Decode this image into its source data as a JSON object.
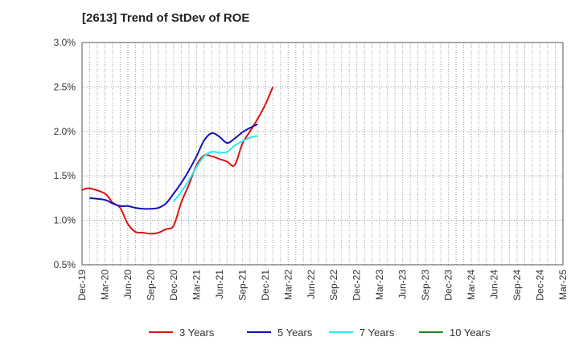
{
  "chart_data": {
    "type": "line",
    "title": "[2613]  Trend of StDev of ROE",
    "xlabel": "",
    "ylabel": "",
    "x_ticks": [
      "Dec-19",
      "Mar-20",
      "Jun-20",
      "Sep-20",
      "Dec-20",
      "Mar-21",
      "Jun-21",
      "Sep-21",
      "Dec-21",
      "Mar-22",
      "Jun-22",
      "Sep-22",
      "Dec-22",
      "Mar-23",
      "Jun-23",
      "Sep-23",
      "Dec-23",
      "Mar-24",
      "Jun-24",
      "Sep-24",
      "Dec-24",
      "Mar-25"
    ],
    "y_ticks": [
      "0.5%",
      "1.0%",
      "1.5%",
      "2.0%",
      "2.5%",
      "3.0%"
    ],
    "ylim": [
      0.5,
      3.0
    ],
    "grid": true,
    "legend_position": "bottom",
    "series": [
      {
        "name": "3 Years",
        "color": "#dd1111",
        "values": [
          1.34,
          1.36,
          1.3,
          1.2,
          1.14,
          0.96,
          0.87,
          0.86,
          0.85,
          0.86,
          0.9,
          0.94,
          1.2,
          1.4,
          1.62,
          1.73,
          1.72,
          1.69,
          1.66,
          1.62,
          1.86,
          2.0,
          2.14,
          2.3,
          2.5
        ],
        "x_index": [
          0,
          1,
          3,
          4,
          5,
          6,
          7,
          8,
          9,
          10,
          11,
          12,
          13,
          14,
          15,
          16,
          17,
          18,
          19,
          20,
          21,
          22,
          23,
          24,
          25
        ]
      },
      {
        "name": "5 Years",
        "color": "#1111bb",
        "values": [
          1.25,
          1.23,
          1.19,
          1.16,
          1.16,
          1.14,
          1.13,
          1.13,
          1.14,
          1.19,
          1.3,
          1.42,
          1.56,
          1.72,
          1.9,
          1.98,
          1.94,
          1.87,
          1.92,
          1.99,
          2.04,
          2.08
        ],
        "x_index": [
          1,
          3,
          4,
          5,
          6,
          7,
          8,
          9,
          10,
          11,
          12,
          13,
          14,
          15,
          16,
          17,
          18,
          19,
          20,
          21,
          22,
          23
        ]
      },
      {
        "name": "7 Years",
        "color": "#22eeee",
        "values": [
          1.21,
          1.32,
          1.45,
          1.6,
          1.72,
          1.77,
          1.76,
          1.77,
          1.84,
          1.89,
          1.93,
          1.95
        ],
        "x_index": [
          12,
          13,
          14,
          15,
          16,
          17,
          18,
          19,
          20,
          21,
          22,
          23
        ]
      },
      {
        "name": "10 Years",
        "color": "#228822",
        "values": [],
        "x_index": []
      }
    ]
  }
}
